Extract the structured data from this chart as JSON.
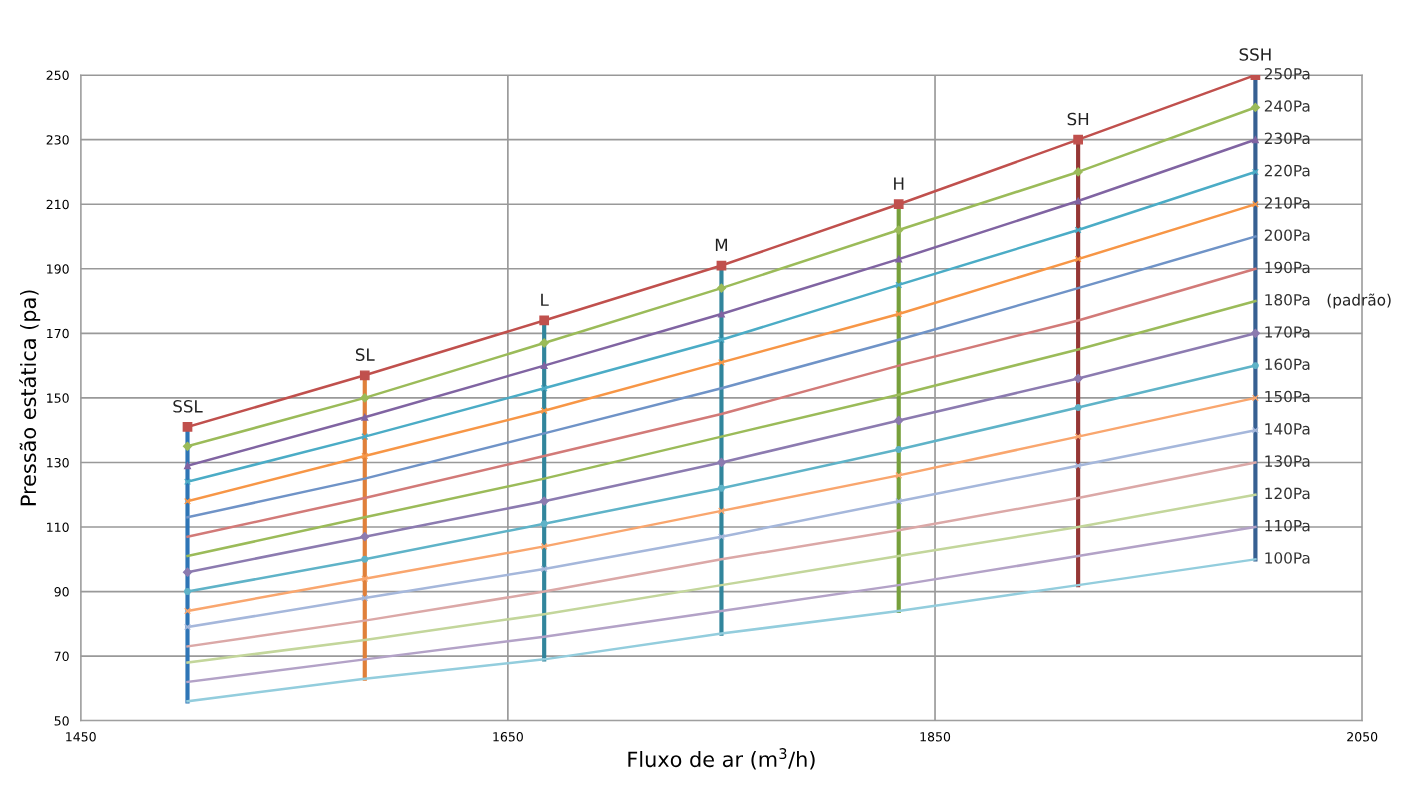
{
  "chart_data": {
    "type": "line",
    "xlabel": "Fluxo de ar (m$^{3}$/h)",
    "ylabel": "Pressão estática (pa)",
    "x": [
      1500,
      1583,
      1667,
      1750,
      1833,
      1917,
      2000
    ],
    "xlim": [
      1450,
      2050
    ],
    "xticks": [
      1450,
      1650,
      1850,
      2050
    ],
    "ylim": [
      50,
      250
    ],
    "yticks": [
      50,
      70,
      90,
      110,
      130,
      150,
      170,
      190,
      210,
      230,
      250
    ],
    "grid": true,
    "legend": false,
    "line_style": "solid",
    "series": [
      {
        "name": "250Pa",
        "color": "#c0504d",
        "marker": "square",
        "values": [
          141,
          157,
          174,
          191,
          210,
          230,
          250
        ]
      },
      {
        "name": "240Pa",
        "color": "#9bbb59",
        "marker": "diamond",
        "values": [
          135,
          150,
          167,
          184,
          202,
          220,
          240
        ]
      },
      {
        "name": "230Pa",
        "color": "#8064a2",
        "marker": "triangle",
        "values": [
          129,
          144,
          160,
          176,
          193,
          211,
          230
        ]
      },
      {
        "name": "220Pa",
        "color": "#4bacc6",
        "marker": "cross",
        "values": [
          124,
          138,
          153,
          168,
          185,
          202,
          220
        ]
      },
      {
        "name": "210Pa",
        "color": "#f79646",
        "marker": "cross",
        "values": [
          118,
          132,
          146,
          161,
          176,
          193,
          210
        ]
      },
      {
        "name": "200Pa",
        "color": "#6f93c7",
        "marker": "none",
        "values": [
          113,
          125,
          139,
          153,
          168,
          184,
          200
        ]
      },
      {
        "name": "190Pa",
        "color": "#d27a78",
        "marker": "none",
        "values": [
          107,
          119,
          132,
          145,
          160,
          174,
          190
        ]
      },
      {
        "name": "180Pa",
        "color": "#9bbb59",
        "marker": "none",
        "values": [
          101,
          113,
          125,
          138,
          151,
          165,
          180
        ]
      },
      {
        "name": "170Pa",
        "color": "#8c7bb0",
        "marker": "diamond",
        "values": [
          96,
          107,
          118,
          130,
          143,
          156,
          170
        ]
      },
      {
        "name": "160Pa",
        "color": "#5fb3c8",
        "marker": "circle",
        "values": [
          90,
          100,
          111,
          122,
          134,
          147,
          160
        ]
      },
      {
        "name": "150Pa",
        "color": "#f9a66e",
        "marker": "cross",
        "values": [
          84,
          94,
          104,
          115,
          126,
          138,
          150
        ]
      },
      {
        "name": "140Pa",
        "color": "#a5b7db",
        "marker": "cross",
        "values": [
          79,
          88,
          97,
          107,
          118,
          129,
          140
        ]
      },
      {
        "name": "130Pa",
        "color": "#dba8a7",
        "marker": "none",
        "values": [
          73,
          81,
          90,
          100,
          109,
          119,
          130
        ]
      },
      {
        "name": "120Pa",
        "color": "#c3d69b",
        "marker": "none",
        "values": [
          68,
          75,
          83,
          92,
          101,
          110,
          120
        ]
      },
      {
        "name": "110Pa",
        "color": "#b3a2c7",
        "marker": "none",
        "values": [
          62,
          69,
          76,
          84,
          92,
          101,
          110
        ]
      },
      {
        "name": "100Pa",
        "color": "#93cddd",
        "marker": "none",
        "values": [
          56,
          63,
          69,
          77,
          84,
          92,
          100
        ]
      },
      {
        "color": "#2e75b6",
        "marker": "none",
        "x": [
          1500,
          1500
        ],
        "values": [
          56,
          141
        ]
      },
      {
        "color": "#e0803a",
        "marker": "none",
        "x": [
          1583,
          1583
        ],
        "values": [
          63,
          157
        ]
      },
      {
        "color": "#31859c",
        "marker": "none",
        "x": [
          1667,
          1667
        ],
        "values": [
          69,
          174
        ]
      },
      {
        "color": "#31859c",
        "marker": "none",
        "x": [
          1750,
          1750
        ],
        "values": [
          77,
          191
        ]
      },
      {
        "color": "#77a03c",
        "marker": "none",
        "x": [
          1833,
          1833
        ],
        "values": [
          84,
          210
        ]
      },
      {
        "color": "#953735",
        "marker": "none",
        "x": [
          1917,
          1917
        ],
        "values": [
          92,
          230
        ]
      },
      {
        "color": "#376092",
        "marker": "none",
        "x": [
          2000,
          2000
        ],
        "values": [
          100,
          250
        ]
      }
    ],
    "annotations": [
      {
        "text": "SSL",
        "x": 1500,
        "y": 141
      },
      {
        "text": "SL",
        "x": 1583,
        "y": 157
      },
      {
        "text": "L",
        "x": 1667,
        "y": 174
      },
      {
        "text": "M",
        "x": 1750,
        "y": 191
      },
      {
        "text": "H",
        "x": 1833,
        "y": 210
      },
      {
        "text": "SH",
        "x": 1917,
        "y": 230
      },
      {
        "text": "SSH",
        "x": 2000,
        "y": 250
      },
      "(padrão)"
    ]
  }
}
